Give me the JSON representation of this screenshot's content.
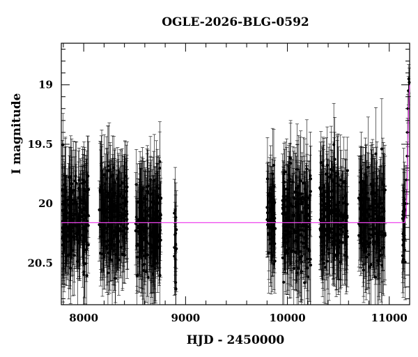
{
  "chart_data": {
    "type": "scatter",
    "title": "OGLE-2026-BLG-0592",
    "xlabel": "HJD - 2450000",
    "ylabel": "I magnitude",
    "xlim": [
      7780,
      11200
    ],
    "ylim": [
      20.85,
      18.65
    ],
    "y_inverted": true,
    "grid": false,
    "x_ticks": [
      8000,
      9000,
      10000,
      11000
    ],
    "x_tick_labels": [
      "8000",
      "9000",
      "10000",
      "11000"
    ],
    "y_ticks": [
      19,
      19.5,
      20,
      20.5
    ],
    "y_tick_labels": [
      "19",
      "19.5",
      "20",
      "20.5"
    ],
    "model_color": "#ee44ee",
    "data_color": "#000000",
    "baseline_mag": 20.16,
    "model": {
      "x": [
        7780,
        11150,
        11165,
        11175,
        11182,
        11190,
        11200
      ],
      "y": [
        20.16,
        20.16,
        20.1,
        19.9,
        19.55,
        19.2,
        19.0
      ]
    },
    "seasons": [
      {
        "start": 7790,
        "end": 8050,
        "mean": 20.13,
        "scatter": 0.36,
        "err": 0.32
      },
      {
        "start": 8150,
        "end": 8430,
        "mean": 20.1,
        "scatter": 0.36,
        "err": 0.33
      },
      {
        "start": 8510,
        "end": 8760,
        "mean": 20.16,
        "scatter": 0.36,
        "err": 0.33
      },
      {
        "start": 8890,
        "end": 8910,
        "mean": 20.3,
        "scatter": 0.36,
        "err": 0.28
      },
      {
        "start": 9800,
        "end": 9880,
        "mean": 20.15,
        "scatter": 0.36,
        "err": 0.3
      },
      {
        "start": 9950,
        "end": 10230,
        "mean": 20.13,
        "scatter": 0.36,
        "err": 0.33
      },
      {
        "start": 10320,
        "end": 10590,
        "mean": 20.12,
        "scatter": 0.36,
        "err": 0.33
      },
      {
        "start": 10700,
        "end": 10960,
        "mean": 20.12,
        "scatter": 0.36,
        "err": 0.33
      },
      {
        "start": 11130,
        "end": 11160,
        "mean": 20.15,
        "scatter": 0.34,
        "err": 0.3
      }
    ],
    "peak_points": {
      "x": [
        11168,
        11172,
        11176,
        11180,
        11184,
        11188,
        11192,
        11196
      ],
      "y": [
        20.0,
        19.8,
        19.6,
        19.4,
        19.2,
        19.05,
        18.95,
        18.98
      ]
    }
  }
}
